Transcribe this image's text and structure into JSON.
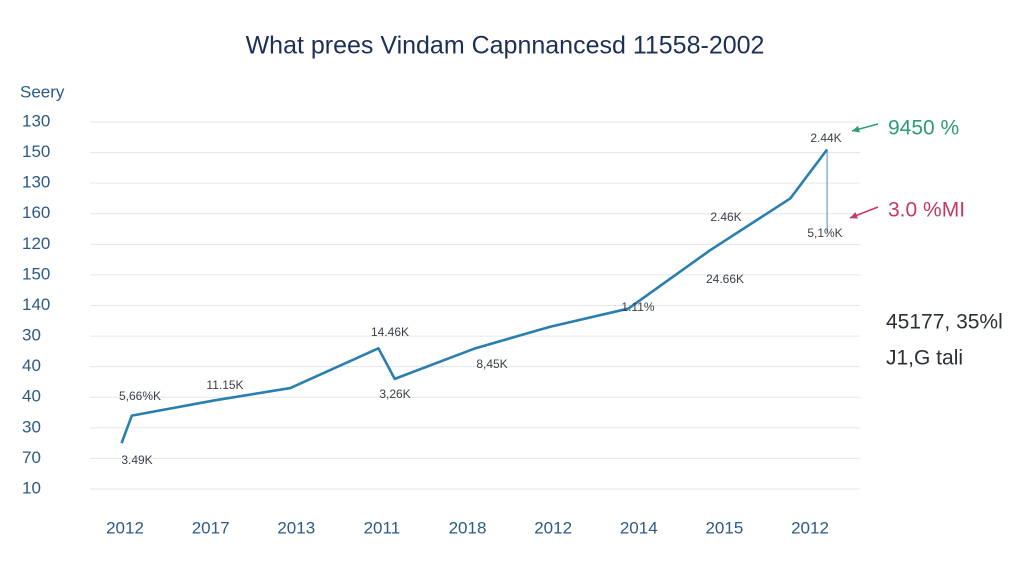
{
  "chart_data": {
    "type": "line",
    "title": "What prees Vindam Capnnancesd 11558-2002",
    "y_axis_label": "Seery",
    "y_labels": [
      "130",
      "150",
      "130",
      "160",
      "120",
      "150",
      "140",
      "30",
      "40",
      "40",
      "30",
      "70",
      "10"
    ],
    "categories": [
      "2012",
      "2017",
      "2013",
      "2011",
      "2018",
      "2012",
      "2014",
      "2015",
      "2012"
    ],
    "grid": true,
    "series": [
      {
        "color": "#2a7fae",
        "x": [
          -0.04,
          0.08,
          1.05,
          1.93,
          2.96,
          3.15,
          4.09,
          4.96,
          5.88,
          6.83,
          7.77,
          8.2
        ],
        "values": [
          1.5,
          2.4,
          2.9,
          3.3,
          4.6,
          3.6,
          4.6,
          5.3,
          5.9,
          7.8,
          9.5,
          11.1
        ]
      }
    ],
    "drop_line": {
      "color": "#6a9fc4",
      "x": [
        8.2,
        8.2
      ],
      "values": [
        11.1,
        8.4
      ]
    },
    "annotations": [
      "5,66%K",
      "11.15K",
      "3.49K",
      "14.46K",
      "3,26K",
      "8,45K",
      "1.11%",
      "2.46K",
      "24.66K",
      "2.44K",
      "5,1%K"
    ],
    "callouts": [
      {
        "text": "9450 %",
        "color": "#2e9c78"
      },
      {
        "text": "3.0 %MI",
        "color": "#c23a62"
      }
    ],
    "side_notes": [
      "45177, 35%l",
      "J1,G tali"
    ]
  }
}
